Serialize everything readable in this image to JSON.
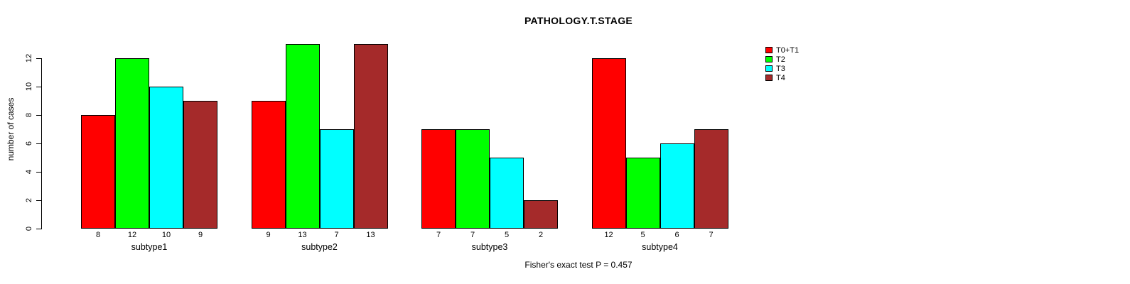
{
  "chart_data": {
    "type": "bar",
    "title": "PATHOLOGY.T.STAGE",
    "ylabel": "number of cases",
    "xlabel": "",
    "footer": "Fisher's exact test P = 0.457",
    "categories": [
      "subtype1",
      "subtype2",
      "subtype3",
      "subtype4"
    ],
    "series": [
      {
        "name": "T0+T1",
        "color": "#FF0000",
        "values": [
          8,
          9,
          7,
          12
        ]
      },
      {
        "name": "T2",
        "color": "#00FF00",
        "values": [
          12,
          13,
          7,
          5
        ]
      },
      {
        "name": "T3",
        "color": "#00FFFF",
        "values": [
          10,
          7,
          5,
          6
        ]
      },
      {
        "name": "T4",
        "color": "#A52A2A",
        "values": [
          9,
          13,
          2,
          7
        ]
      }
    ],
    "bar_value_labels": [
      [
        8,
        12,
        10,
        9
      ],
      [
        9,
        13,
        7,
        13
      ],
      [
        7,
        7,
        5,
        2
      ],
      [
        12,
        5,
        6,
        7
      ]
    ],
    "y_ticks": [
      0,
      2,
      4,
      6,
      8,
      10,
      12
    ],
    "ylim": [
      0,
      13
    ],
    "grid": false,
    "legend_position": "right",
    "background_color": "#FFFFFF",
    "axis_color": "#000000"
  }
}
